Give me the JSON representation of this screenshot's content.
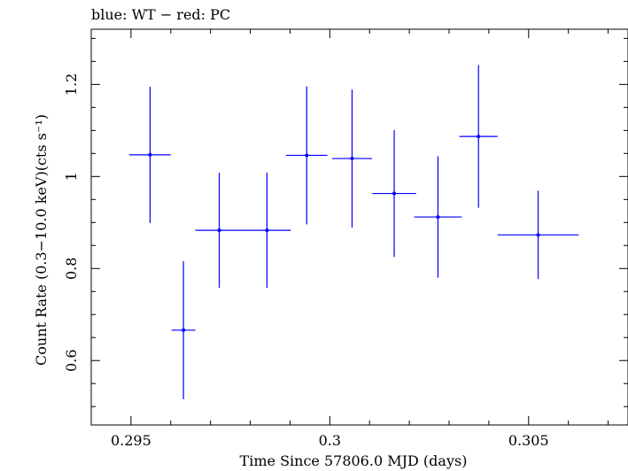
{
  "chart_data": {
    "type": "scatter",
    "title": "blue: WT − red: PC",
    "xlabel": "Time Since 57806.0 MJD (days)",
    "ylabel": "Count Rate (0.3−10.0 keV)(cts s⁻¹)",
    "xlim": [
      0.294,
      0.3075
    ],
    "ylim": [
      0.46,
      1.32
    ],
    "xticks": [
      {
        "value": 0.295,
        "label": "0.295"
      },
      {
        "value": 0.3,
        "label": "0.3"
      },
      {
        "value": 0.305,
        "label": "0.305"
      }
    ],
    "yticks": [
      {
        "value": 0.6,
        "label": "0.6"
      },
      {
        "value": 0.8,
        "label": "0.8"
      },
      {
        "value": 1.0,
        "label": "1"
      },
      {
        "value": 1.2,
        "label": "1.2"
      }
    ],
    "grid": false,
    "series": [
      {
        "name": "WT",
        "color": "#0000ff",
        "points": [
          {
            "x": 0.29548,
            "xerr": 0.00052,
            "y": 1.047,
            "yerr": 0.148
          },
          {
            "x": 0.29632,
            "xerr": 0.0003,
            "y": 0.666,
            "yerr": 0.15
          },
          {
            "x": 0.29722,
            "xerr": 0.0006,
            "y": 0.883,
            "yerr": 0.125
          },
          {
            "x": 0.29842,
            "xerr": 0.0006,
            "y": 0.883,
            "yerr": 0.125
          },
          {
            "x": 0.29942,
            "xerr": 0.00052,
            "y": 1.046,
            "yerr": 0.15
          },
          {
            "x": 0.30056,
            "xerr": 0.0005,
            "y": 1.039,
            "yerr": 0.15
          },
          {
            "x": 0.30162,
            "xerr": 0.00055,
            "y": 0.963,
            "yerr": 0.138
          },
          {
            "x": 0.30272,
            "xerr": 0.0006,
            "y": 0.912,
            "yerr": 0.132
          },
          {
            "x": 0.30374,
            "xerr": 0.00048,
            "y": 1.087,
            "yerr": 0.155
          },
          {
            "x": 0.30524,
            "xerr": 0.00102,
            "y": 0.873,
            "yerr": 0.096
          }
        ]
      }
    ]
  }
}
